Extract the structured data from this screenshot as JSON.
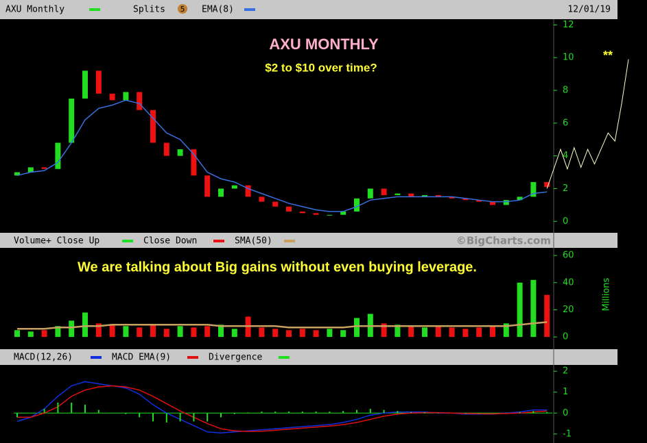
{
  "header": {
    "symbol": "AXU Monthly",
    "splits": "Splits",
    "splits_count": "5",
    "date": "12/01/19"
  },
  "annotations": {
    "title": "AXU MONTHLY",
    "subtitle": "$2 to $10 over time?",
    "stars": "**",
    "volume_note": "We are talking about Big gains without even buying leverage."
  },
  "chart_data": [
    {
      "type": "candlestick",
      "up_color": "#22dd22",
      "down_color": "#ee1111",
      "open": [
        2.8,
        3.0,
        3.3,
        3.2,
        4.8,
        7.5,
        9.2,
        7.8,
        7.4,
        7.9,
        6.8,
        4.8,
        4.0,
        4.4,
        2.8,
        1.5,
        2.0,
        2.2,
        1.5,
        1.2,
        0.9,
        0.6,
        0.5,
        0.4,
        0.4,
        0.6,
        1.4,
        2.0,
        1.6,
        1.7,
        1.5,
        1.6,
        1.5,
        1.4,
        1.3,
        1.2,
        1.0,
        1.3,
        1.5,
        2.4
      ],
      "close": [
        3.0,
        3.3,
        3.2,
        4.8,
        7.5,
        9.2,
        7.8,
        7.4,
        7.9,
        6.8,
        4.8,
        4.0,
        4.4,
        2.8,
        1.5,
        2.0,
        2.2,
        1.5,
        1.2,
        0.9,
        0.6,
        0.5,
        0.4,
        0.4,
        0.6,
        1.4,
        2.0,
        1.6,
        1.7,
        1.5,
        1.6,
        1.5,
        1.4,
        1.3,
        1.2,
        1.0,
        1.3,
        1.5,
        2.4,
        2.1
      ],
      "series": [
        {
          "name": "EMA(8)",
          "color": "#3a6fe0",
          "values": [
            2.8,
            3.0,
            3.1,
            3.6,
            4.8,
            6.2,
            6.9,
            7.1,
            7.4,
            7.2,
            6.3,
            5.4,
            5.0,
            4.1,
            3.0,
            2.6,
            2.4,
            2.0,
            1.7,
            1.4,
            1.1,
            0.9,
            0.7,
            0.6,
            0.6,
            0.9,
            1.3,
            1.4,
            1.5,
            1.5,
            1.5,
            1.5,
            1.5,
            1.4,
            1.3,
            1.2,
            1.2,
            1.3,
            1.7,
            1.8
          ]
        }
      ],
      "projection": {
        "color": "#ffffcc",
        "x": [
          39,
          40,
          40.5,
          41,
          41.5,
          42,
          42.5,
          43.5,
          44,
          44.5,
          45
        ],
        "values": [
          2.0,
          4.4,
          3.2,
          4.5,
          3.3,
          4.4,
          3.5,
          5.4,
          4.9,
          7.2,
          9.9
        ]
      },
      "ylim": [
        -0.7,
        12.35
      ],
      "yticks": [
        0,
        2,
        4,
        6,
        8,
        10,
        12
      ]
    },
    {
      "type": "bar",
      "legend_up": "Volume+ Close Up",
      "legend_down": "Close Down",
      "up_color": "#22dd22",
      "down_color": "#ee1111",
      "values": [
        5,
        4,
        5,
        8,
        12,
        18,
        10,
        9,
        8,
        7,
        9,
        6,
        8,
        7,
        8,
        9,
        6,
        15,
        7,
        6,
        5,
        6,
        5,
        6,
        5,
        14,
        17,
        10,
        9,
        8,
        7,
        8,
        7,
        6,
        7,
        8,
        10,
        40,
        42,
        31
      ],
      "series": [
        {
          "name": "SMA(50)",
          "color": "#c8a060",
          "values": [
            6,
            6,
            6,
            7,
            7,
            8,
            8,
            9,
            9,
            9,
            9,
            9,
            9,
            9,
            9,
            8,
            8,
            8,
            8,
            8,
            7,
            7,
            7,
            7,
            7,
            8,
            8,
            8,
            8,
            8,
            8,
            8,
            8,
            8,
            8,
            8,
            8,
            9,
            10,
            11
          ]
        }
      ],
      "y_label": "Millions",
      "watermark": "©BigCharts.com",
      "ylim": [
        -9,
        65.6
      ],
      "yticks": [
        0,
        20,
        40,
        60
      ]
    },
    {
      "type": "macd",
      "series": [
        {
          "name": "MACD(12,26)",
          "color": "#1030e0",
          "values": [
            -0.4,
            -0.2,
            0.2,
            0.8,
            1.3,
            1.5,
            1.4,
            1.3,
            1.2,
            0.9,
            0.4,
            0.0,
            -0.3,
            -0.6,
            -0.9,
            -0.95,
            -0.9,
            -0.85,
            -0.8,
            -0.75,
            -0.7,
            -0.65,
            -0.6,
            -0.55,
            -0.45,
            -0.3,
            -0.1,
            0.0,
            0.05,
            0.05,
            0.05,
            0.0,
            0.0,
            -0.05,
            -0.05,
            -0.05,
            0.0,
            0.05,
            0.15,
            0.15
          ]
        },
        {
          "name": "MACD EMA(9)",
          "color": "#e01010",
          "values": [
            -0.2,
            -0.2,
            0.0,
            0.3,
            0.8,
            1.1,
            1.25,
            1.3,
            1.25,
            1.1,
            0.8,
            0.45,
            0.1,
            -0.2,
            -0.5,
            -0.75,
            -0.85,
            -0.88,
            -0.87,
            -0.82,
            -0.77,
            -0.72,
            -0.67,
            -0.62,
            -0.55,
            -0.45,
            -0.3,
            -0.15,
            -0.05,
            0.0,
            0.02,
            0.02,
            0.0,
            -0.02,
            -0.03,
            -0.04,
            -0.02,
            0.0,
            0.05,
            0.1
          ]
        },
        {
          "name": "Divergence",
          "color": "#22dd22",
          "type": "bar",
          "values": [
            -0.2,
            0.0,
            0.2,
            0.5,
            0.5,
            0.4,
            0.15,
            0.0,
            -0.05,
            -0.2,
            -0.4,
            -0.45,
            -0.4,
            -0.4,
            -0.4,
            -0.2,
            -0.05,
            0.03,
            0.07,
            0.07,
            0.07,
            0.07,
            0.07,
            0.07,
            0.1,
            0.15,
            0.2,
            0.15,
            0.1,
            0.05,
            0.03,
            -0.02,
            0.0,
            -0.03,
            -0.02,
            -0.01,
            0.02,
            0.05,
            0.1,
            0.05
          ]
        }
      ],
      "ylim": [
        -1.3,
        2.3
      ],
      "yticks": [
        -1,
        0,
        1,
        2
      ]
    }
  ]
}
